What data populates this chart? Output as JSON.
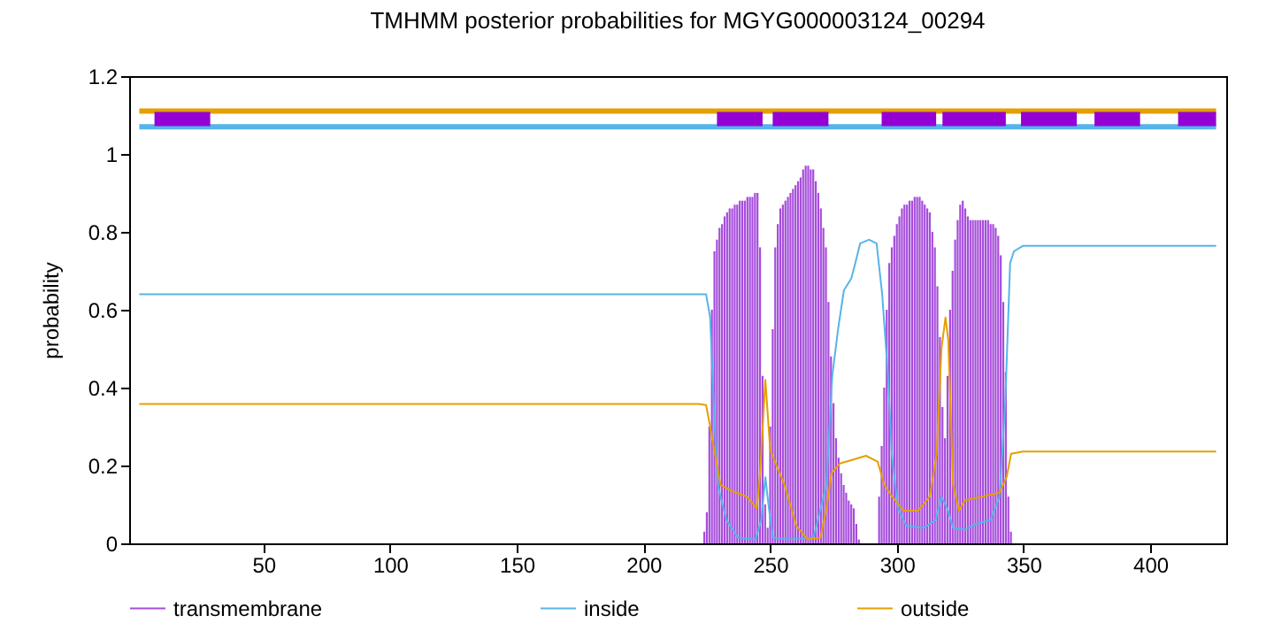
{
  "chart_data": {
    "type": "line",
    "title": "TMHMM posterior probabilities for MGYG000003124_00294",
    "ylabel": "probability",
    "xlim": [
      0.5,
      426.5
    ],
    "ylim": [
      0,
      1.2
    ],
    "xticks": [
      50,
      100,
      150,
      200,
      250,
      300,
      350,
      400
    ],
    "yticks": [
      0,
      0.2,
      0.4,
      0.6,
      0.8,
      1,
      1.2
    ],
    "legend": "bottom",
    "series": [
      {
        "name": "transmembrane",
        "type": "bar",
        "color": "#a64ddb",
        "x": [
          224,
          225,
          226,
          227,
          228,
          229,
          230,
          231,
          232,
          233,
          234,
          235,
          236,
          237,
          238,
          239,
          240,
          241,
          242,
          243,
          244,
          245,
          246,
          247,
          248,
          249,
          250,
          251,
          252,
          253,
          254,
          255,
          256,
          257,
          258,
          259,
          260,
          261,
          262,
          263,
          264,
          265,
          266,
          267,
          268,
          269,
          270,
          271,
          272,
          273,
          274,
          275,
          276,
          277,
          278,
          279,
          280,
          281,
          282,
          283,
          284,
          285,
          293,
          294,
          295,
          296,
          297,
          298,
          299,
          300,
          301,
          302,
          303,
          304,
          305,
          306,
          307,
          308,
          309,
          310,
          311,
          312,
          313,
          314,
          315,
          316,
          317,
          318,
          319,
          320,
          321,
          322,
          323,
          324,
          325,
          326,
          327,
          328,
          329,
          330,
          331,
          332,
          333,
          334,
          335,
          336,
          337,
          338,
          339,
          340,
          341,
          342,
          343,
          344,
          345
        ],
        "values": [
          0.03,
          0.08,
          0.3,
          0.6,
          0.75,
          0.78,
          0.81,
          0.82,
          0.84,
          0.85,
          0.86,
          0.86,
          0.87,
          0.87,
          0.88,
          0.88,
          0.88,
          0.89,
          0.89,
          0.89,
          0.9,
          0.9,
          0.76,
          0.43,
          0.1,
          0.04,
          0.3,
          0.55,
          0.76,
          0.82,
          0.86,
          0.87,
          0.88,
          0.89,
          0.9,
          0.91,
          0.92,
          0.93,
          0.94,
          0.96,
          0.97,
          0.97,
          0.96,
          0.96,
          0.93,
          0.9,
          0.86,
          0.81,
          0.76,
          0.62,
          0.48,
          0.36,
          0.27,
          0.22,
          0.18,
          0.15,
          0.13,
          0.11,
          0.1,
          0.09,
          0.05,
          0.01,
          0.12,
          0.25,
          0.4,
          0.6,
          0.72,
          0.76,
          0.79,
          0.82,
          0.84,
          0.86,
          0.87,
          0.87,
          0.88,
          0.88,
          0.89,
          0.89,
          0.89,
          0.88,
          0.87,
          0.86,
          0.85,
          0.8,
          0.76,
          0.66,
          0.53,
          0.35,
          0.27,
          0.43,
          0.6,
          0.7,
          0.78,
          0.83,
          0.87,
          0.88,
          0.86,
          0.84,
          0.83,
          0.83,
          0.83,
          0.83,
          0.83,
          0.83,
          0.83,
          0.83,
          0.82,
          0.82,
          0.81,
          0.79,
          0.74,
          0.62,
          0.44,
          0.12,
          0.03
        ]
      },
      {
        "name": "inside",
        "color": "#56b4e9",
        "x": [
          1,
          222,
          224.7,
          226.3,
          227.7,
          229.3,
          232.7,
          237.3,
          244.2,
          246.5,
          248.1,
          249.5,
          251.1,
          258,
          267.1,
          272.2,
          274.5,
          276.8,
          279.1,
          282,
          283.6,
          285.5,
          289,
          292,
          294.2,
          296.5,
          298,
          300.4,
          303.8,
          310.7,
          315.3,
          317.6,
          319.9,
          322.2,
          326.8,
          331.3,
          337,
          340.5,
          342.8,
          344.7,
          346.2,
          349.7,
          426
        ],
        "values": [
          0.64,
          0.64,
          0.64,
          0.58,
          0.365,
          0.15,
          0.06,
          0.015,
          0.01,
          0.06,
          0.17,
          0.09,
          0.015,
          0.01,
          0.015,
          0.15,
          0.43,
          0.55,
          0.65,
          0.68,
          0.72,
          0.77,
          0.78,
          0.77,
          0.64,
          0.43,
          0.23,
          0.09,
          0.045,
          0.04,
          0.06,
          0.12,
          0.09,
          0.04,
          0.035,
          0.05,
          0.06,
          0.12,
          0.365,
          0.72,
          0.75,
          0.764,
          0.764
        ]
      },
      {
        "name": "outside",
        "color": "#e69f00",
        "x": [
          1,
          222,
          224.7,
          226.3,
          228.2,
          230.4,
          235,
          240.8,
          244.7,
          246,
          248.1,
          250,
          252.2,
          255.7,
          260.3,
          264.8,
          269.9,
          272.2,
          274.2,
          277.5,
          283.2,
          287.8,
          292.4,
          295.1,
          298.1,
          302.7,
          308.4,
          313,
          315.7,
          317.6,
          319.2,
          320.3,
          322.2,
          324.5,
          326.8,
          333.6,
          340.5,
          343.3,
          345.1,
          349.7,
          426
        ],
        "values": [
          0.358,
          0.358,
          0.355,
          0.3,
          0.23,
          0.15,
          0.134,
          0.12,
          0.09,
          0.18,
          0.42,
          0.24,
          0.205,
          0.15,
          0.045,
          0.01,
          0.015,
          0.09,
          0.18,
          0.205,
          0.216,
          0.225,
          0.21,
          0.15,
          0.12,
          0.084,
          0.084,
          0.12,
          0.23,
          0.5,
          0.58,
          0.52,
          0.15,
          0.084,
          0.11,
          0.12,
          0.13,
          0.17,
          0.23,
          0.236,
          0.236
        ]
      },
      {
        "color": "#e69f00",
        "x": [
          1,
          426
        ],
        "values": [
          1.11,
          1.11
        ]
      },
      {
        "color": "#56b4e9",
        "x": [
          1,
          426
        ],
        "values": [
          1.07,
          1.07
        ]
      },
      {
        "color": "#9400d3",
        "x": [
          7,
          29
        ],
        "values": [
          1.09,
          1.09
        ]
      },
      {
        "color": "#9400d3",
        "x": [
          229,
          247
        ],
        "values": [
          1.09,
          1.09
        ]
      },
      {
        "color": "#9400d3",
        "x": [
          251,
          273
        ],
        "values": [
          1.09,
          1.09
        ]
      },
      {
        "color": "#9400d3",
        "x": [
          294,
          315.5
        ],
        "values": [
          1.09,
          1.09
        ]
      },
      {
        "color": "#9400d3",
        "x": [
          318,
          343
        ],
        "values": [
          1.09,
          1.09
        ]
      },
      {
        "color": "#9400d3",
        "x": [
          349,
          371
        ],
        "values": [
          1.09,
          1.09
        ]
      },
      {
        "color": "#9400d3",
        "x": [
          378,
          396
        ],
        "values": [
          1.09,
          1.09
        ]
      },
      {
        "color": "#9400d3",
        "x": [
          411,
          426
        ],
        "values": [
          1.09,
          1.09
        ]
      }
    ]
  }
}
